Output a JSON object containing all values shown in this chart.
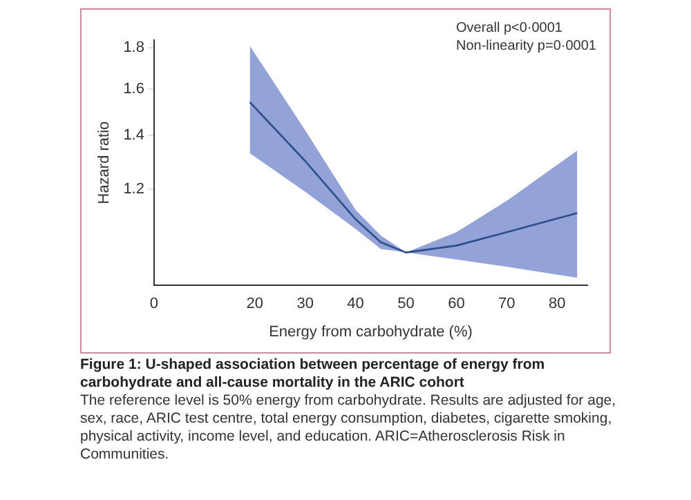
{
  "chart_data": {
    "type": "line",
    "xlabel": "Energy from carbohydrate (%)",
    "ylabel": "Hazard ratio",
    "log": "y",
    "x": [
      19,
      30,
      40,
      45,
      50,
      60,
      70,
      84
    ],
    "series": [
      {
        "color": "#2b4f8a",
        "values": [
          1.54,
          1.3,
          1.1,
          1.03,
          1.0,
          1.02,
          1.06,
          1.12
        ],
        "lower": [
          1.33,
          1.19,
          1.07,
          1.01,
          1.0,
          0.98,
          0.96,
          0.93
        ],
        "upper": [
          1.81,
          1.42,
          1.13,
          1.05,
          1.0,
          1.06,
          1.16,
          1.34
        ]
      }
    ],
    "xlim": [
      0,
      86
    ],
    "xticks": [
      0,
      20,
      30,
      40,
      50,
      60,
      70,
      80
    ],
    "ylim": [
      0.91,
      1.84
    ],
    "yticks": [
      1.2,
      1.4,
      1.6,
      1.8
    ],
    "grid": false,
    "legend": false,
    "marker": "none",
    "line_style": "solid",
    "annotations": [
      "Overall p<0·0001",
      "Non-linearity p=0·0001",
      "Figure 1: U-shaped association between percentage of energy from carbohydrate and all-cause mortality in the ARIC cohort",
      "The reference level is 50% energy from carbohydrate. Results are adjusted for age, sex, race, ARIC test centre, total energy consumption, diabetes, cigarette smoking, physical activity, income level, and education. ARIC=Atherosclerosis Risk in Communities."
    ]
  }
}
